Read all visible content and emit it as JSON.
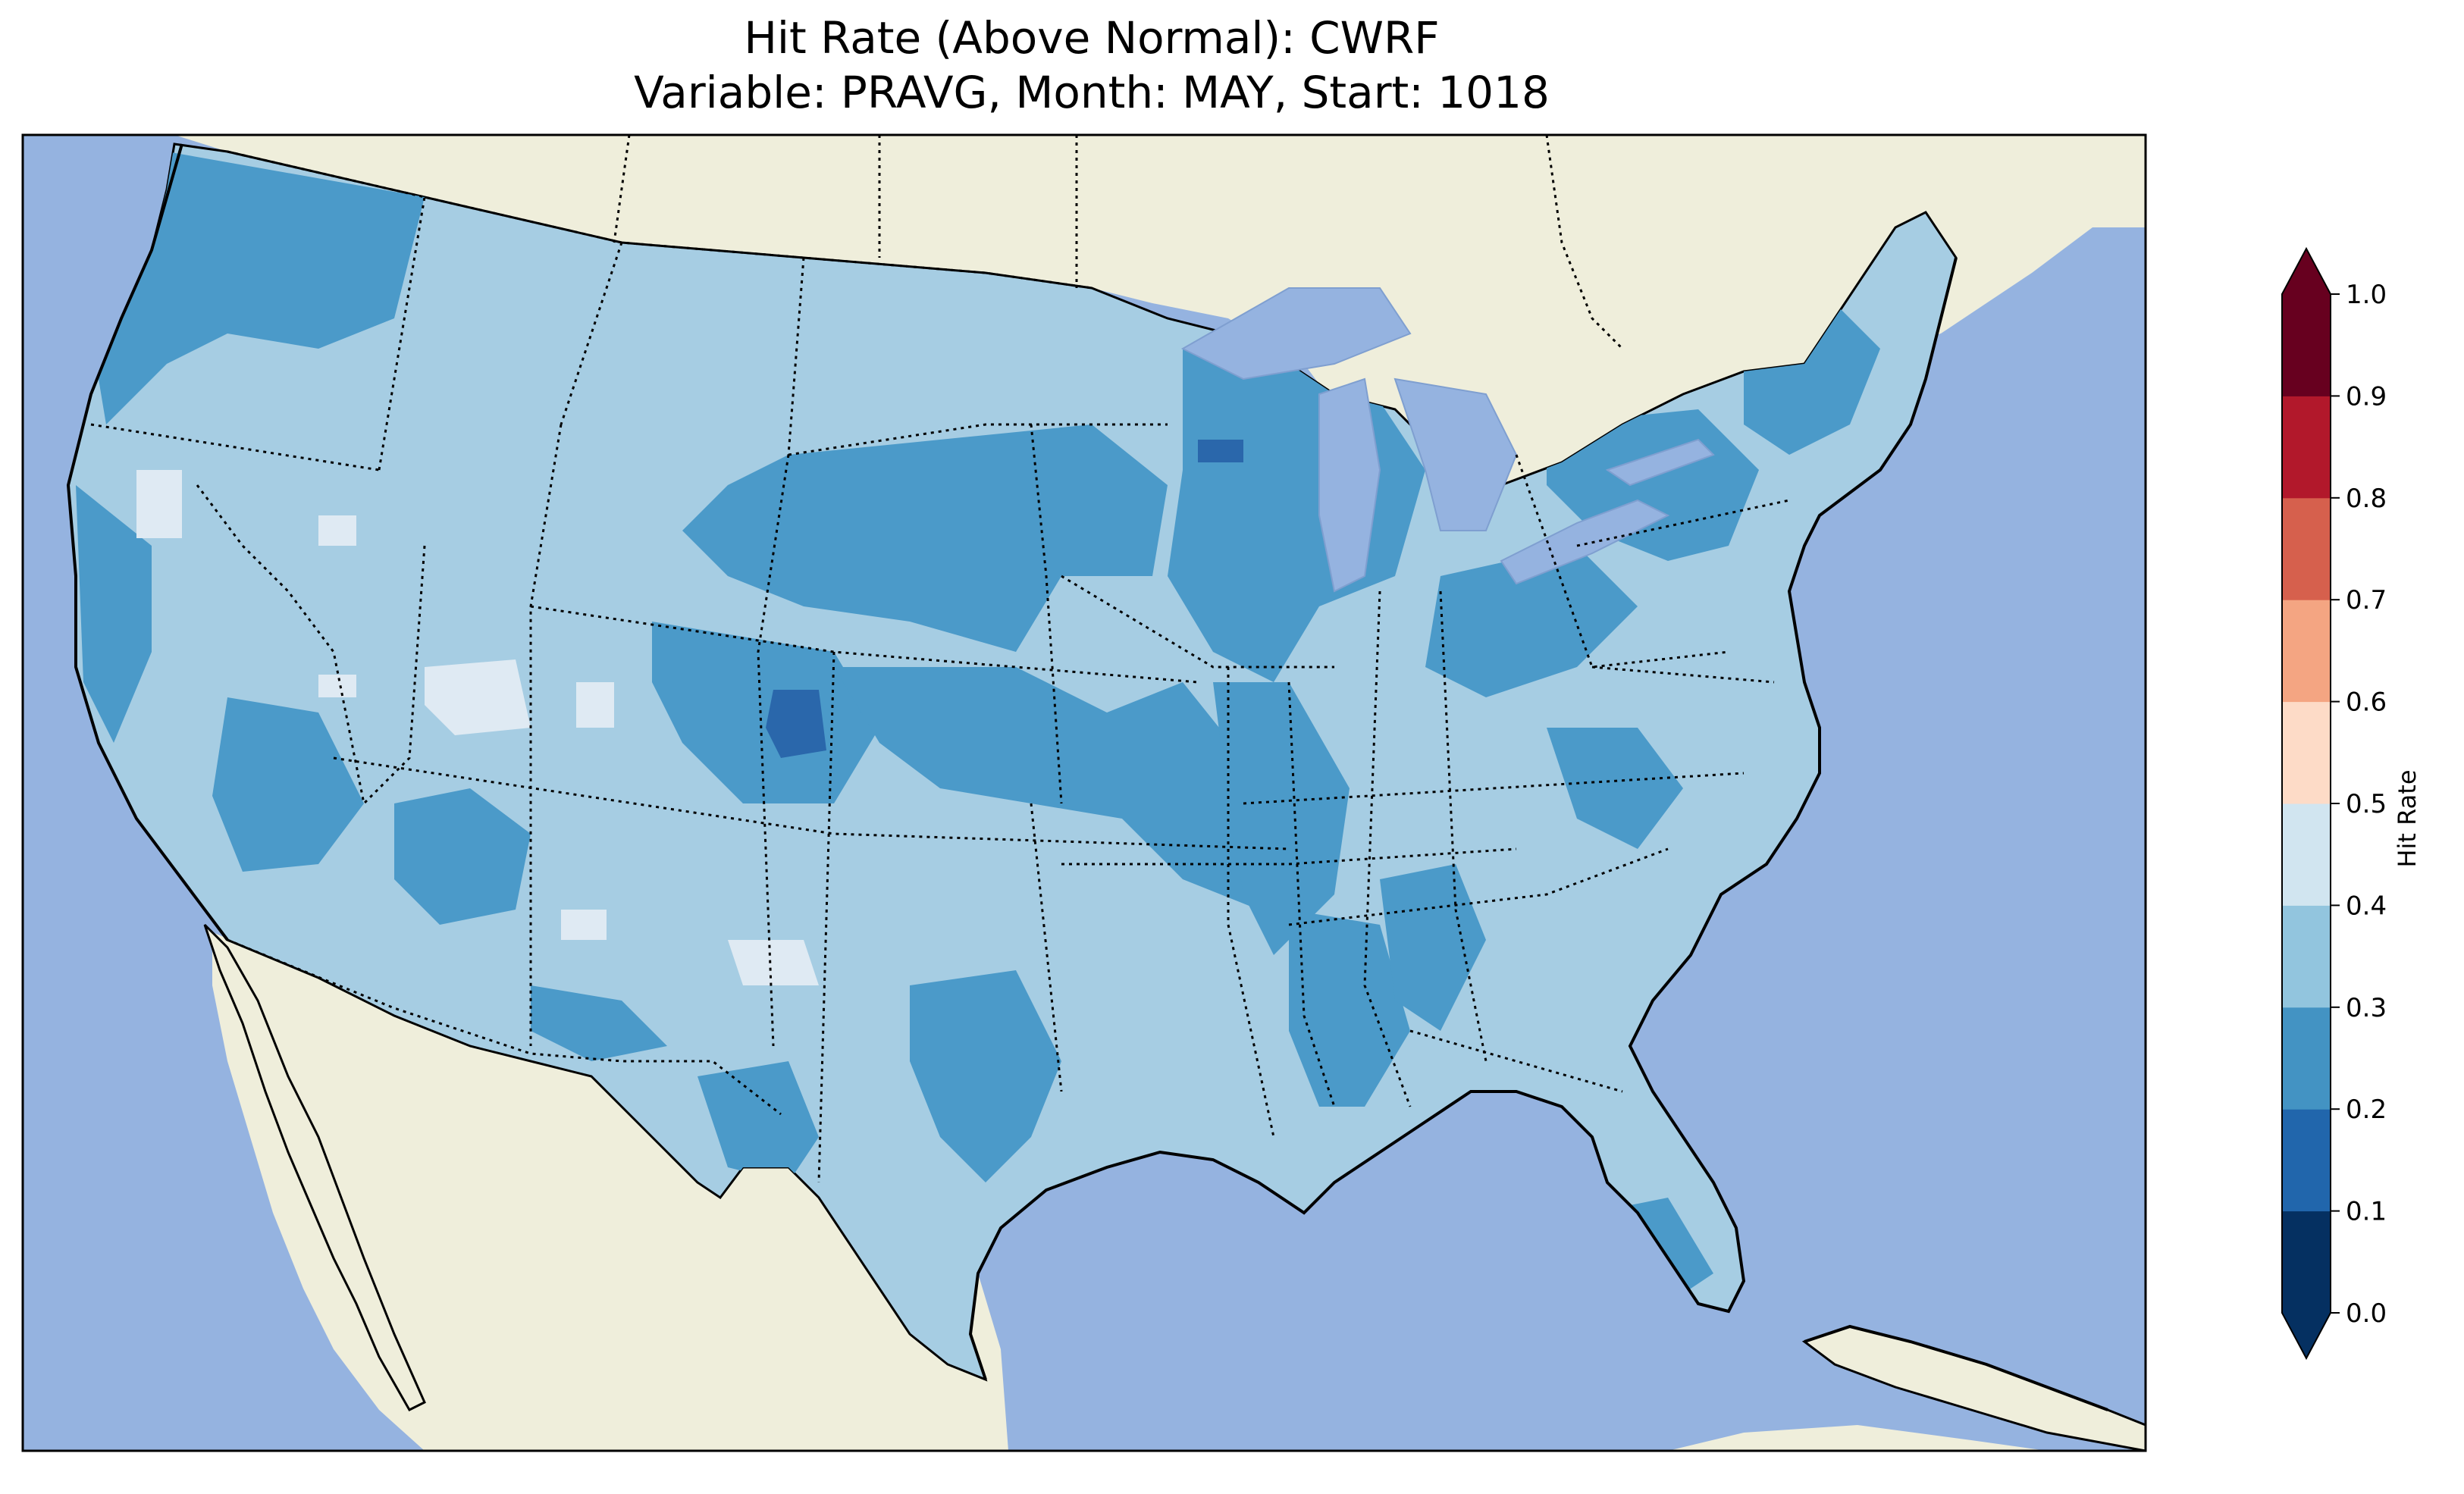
{
  "title": {
    "line1": "Hit Rate (Above Normal): CWRF",
    "line2": "Variable: PRAVG, Month: MAY, Start: 1018"
  },
  "colors": {
    "ocean": "#95b3e0",
    "land": "#efeedb",
    "lakes": "#95b3e0",
    "domain_fill_base": "#a6cde3",
    "coast_stroke": "#000000"
  },
  "colorbar": {
    "label": "Hit Rate",
    "ticks": [
      "0.0",
      "0.1",
      "0.2",
      "0.3",
      "0.4",
      "0.5",
      "0.6",
      "0.7",
      "0.8",
      "0.9",
      "1.0"
    ],
    "bins": [
      {
        "range": "0.0-0.1",
        "color": "#053061"
      },
      {
        "range": "0.1-0.2",
        "color": "#2166ac"
      },
      {
        "range": "0.2-0.3",
        "color": "#4393c3"
      },
      {
        "range": "0.3-0.4",
        "color": "#92c5de"
      },
      {
        "range": "0.4-0.5",
        "color": "#d1e5f0"
      },
      {
        "range": "0.5-0.6",
        "color": "#fddbc7"
      },
      {
        "range": "0.6-0.7",
        "color": "#f4a582"
      },
      {
        "range": "0.7-0.8",
        "color": "#d6604d"
      },
      {
        "range": "0.8-0.9",
        "color": "#b2182b"
      },
      {
        "range": "0.9-1.0",
        "color": "#67001f"
      }
    ],
    "extend": "both"
  }
}
